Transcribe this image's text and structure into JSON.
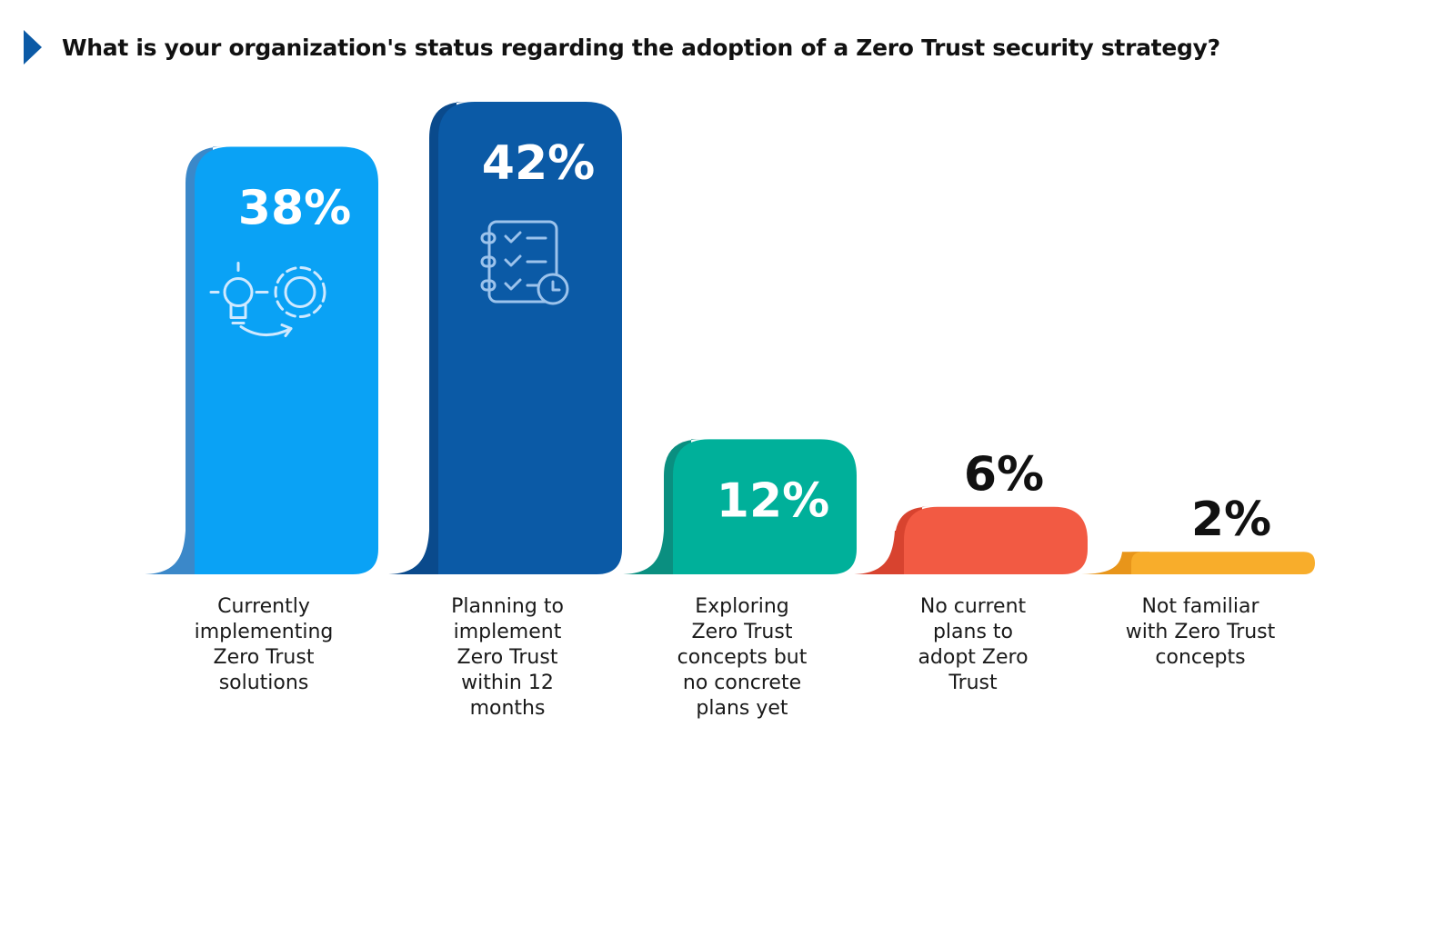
{
  "header": {
    "title": "What is your organization's status regarding the adoption of a Zero Trust security strategy?",
    "marker_color": "#0b5aa6"
  },
  "chart_data": {
    "type": "bar",
    "title": "What is your organization's status regarding the adoption of a Zero Trust security strategy?",
    "xlabel": "",
    "ylabel": "",
    "ylim": [
      0,
      42
    ],
    "grid": false,
    "legend": "none",
    "categories": [
      [
        "Currently",
        "implementing",
        "Zero Trust",
        "solutions"
      ],
      [
        "Planning to",
        "implement",
        "Zero Trust",
        "within 12",
        "months"
      ],
      [
        "Exploring",
        "Zero Trust",
        "concepts but",
        "no concrete",
        "plans yet"
      ],
      [
        "No current",
        "plans to",
        "adopt Zero",
        "Trust"
      ],
      [
        "Not familiar",
        "with Zero Trust",
        "concepts"
      ]
    ],
    "values": [
      38,
      42,
      12,
      6,
      2
    ],
    "value_labels": [
      "38%",
      "42%",
      "12%",
      "6%",
      "2%"
    ],
    "colors": [
      "#0aa2f5",
      "#0b5aa6",
      "#00b09a",
      "#f25a43",
      "#f8ad2b"
    ],
    "shadow_colors": [
      "#3b88c9",
      "#0a4a8c",
      "#0a8f80",
      "#d8432f",
      "#e8951a"
    ],
    "icons": [
      "idea-gear-process-icon",
      "checklist-clock-icon",
      "",
      "",
      ""
    ]
  }
}
